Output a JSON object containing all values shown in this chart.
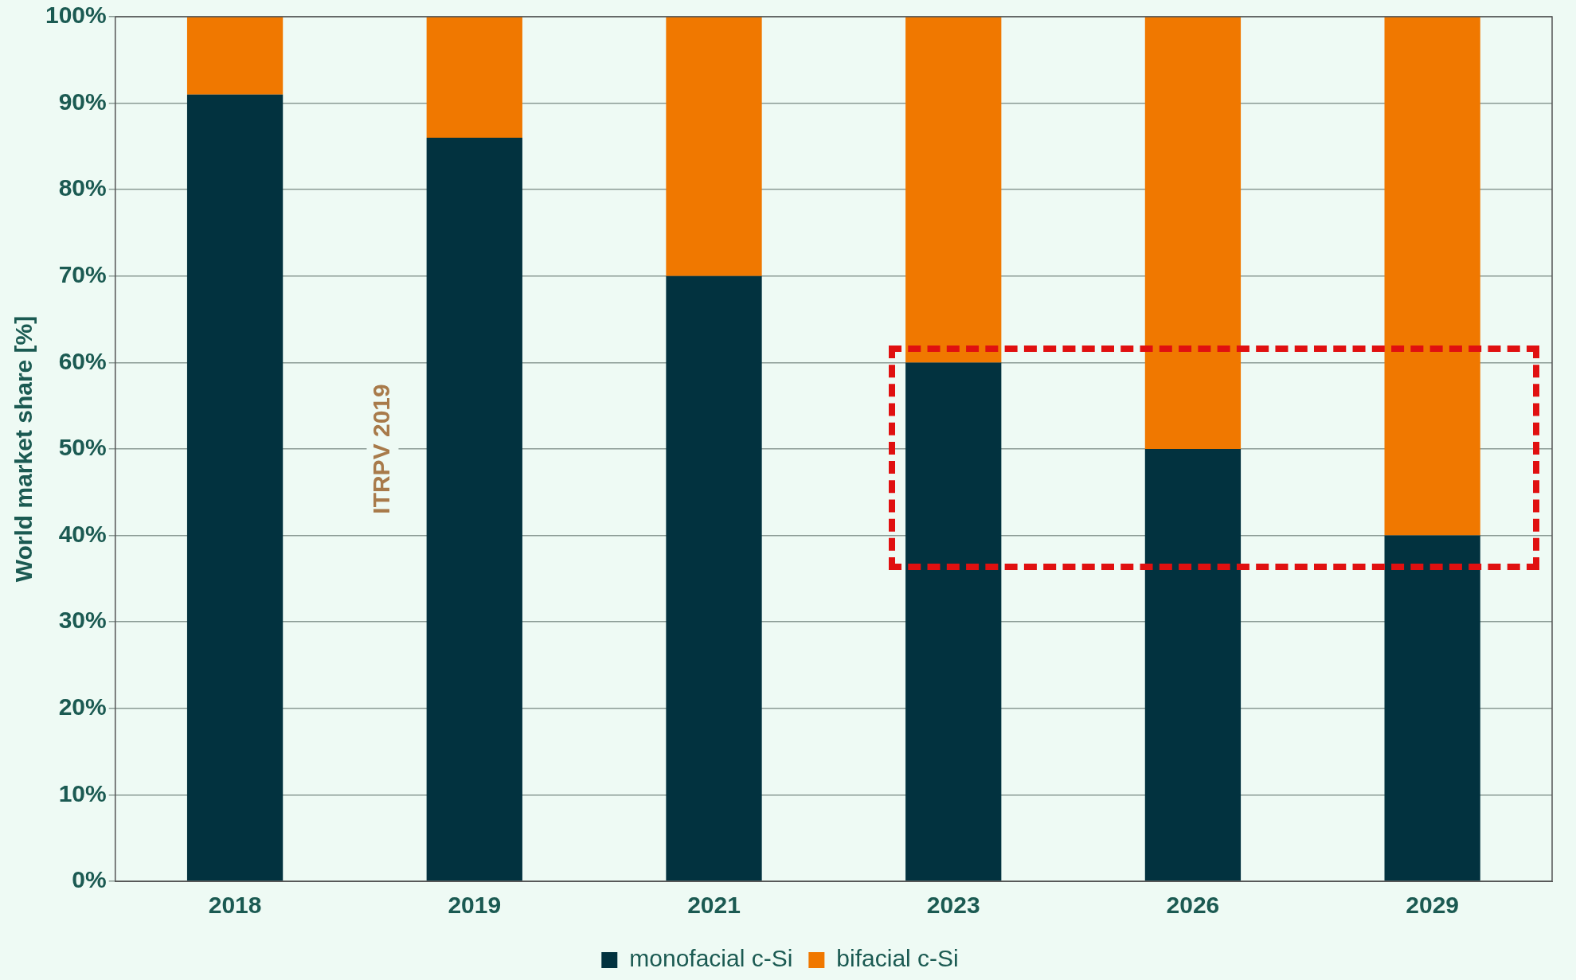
{
  "chart_data": {
    "type": "bar",
    "stacked": true,
    "ylabel": "World market share [%]",
    "categories": [
      "2018",
      "2019",
      "2021",
      "2023",
      "2026",
      "2029"
    ],
    "series": [
      {
        "name": "monofacial c-Si",
        "color": "#02323f",
        "values": [
          91,
          86,
          70,
          60,
          50,
          40
        ]
      },
      {
        "name": "bifacial c-Si",
        "color": "#f07800",
        "values": [
          9,
          14,
          30,
          40,
          50,
          60
        ]
      }
    ],
    "ylim": [
      0,
      100
    ],
    "yticks": [
      {
        "value": 0,
        "label": "0%"
      },
      {
        "value": 10,
        "label": "10%"
      },
      {
        "value": 20,
        "label": "20%"
      },
      {
        "value": 30,
        "label": "30%"
      },
      {
        "value": 40,
        "label": "40%"
      },
      {
        "value": 50,
        "label": "50%"
      },
      {
        "value": 60,
        "label": "60%"
      },
      {
        "value": 70,
        "label": "70%"
      },
      {
        "value": 80,
        "label": "80%"
      },
      {
        "value": 90,
        "label": "90%"
      },
      {
        "value": 100,
        "label": "100%"
      }
    ],
    "grid": "y",
    "legend": "bottom",
    "annotations": [
      "ITRPV 2019"
    ]
  }
}
